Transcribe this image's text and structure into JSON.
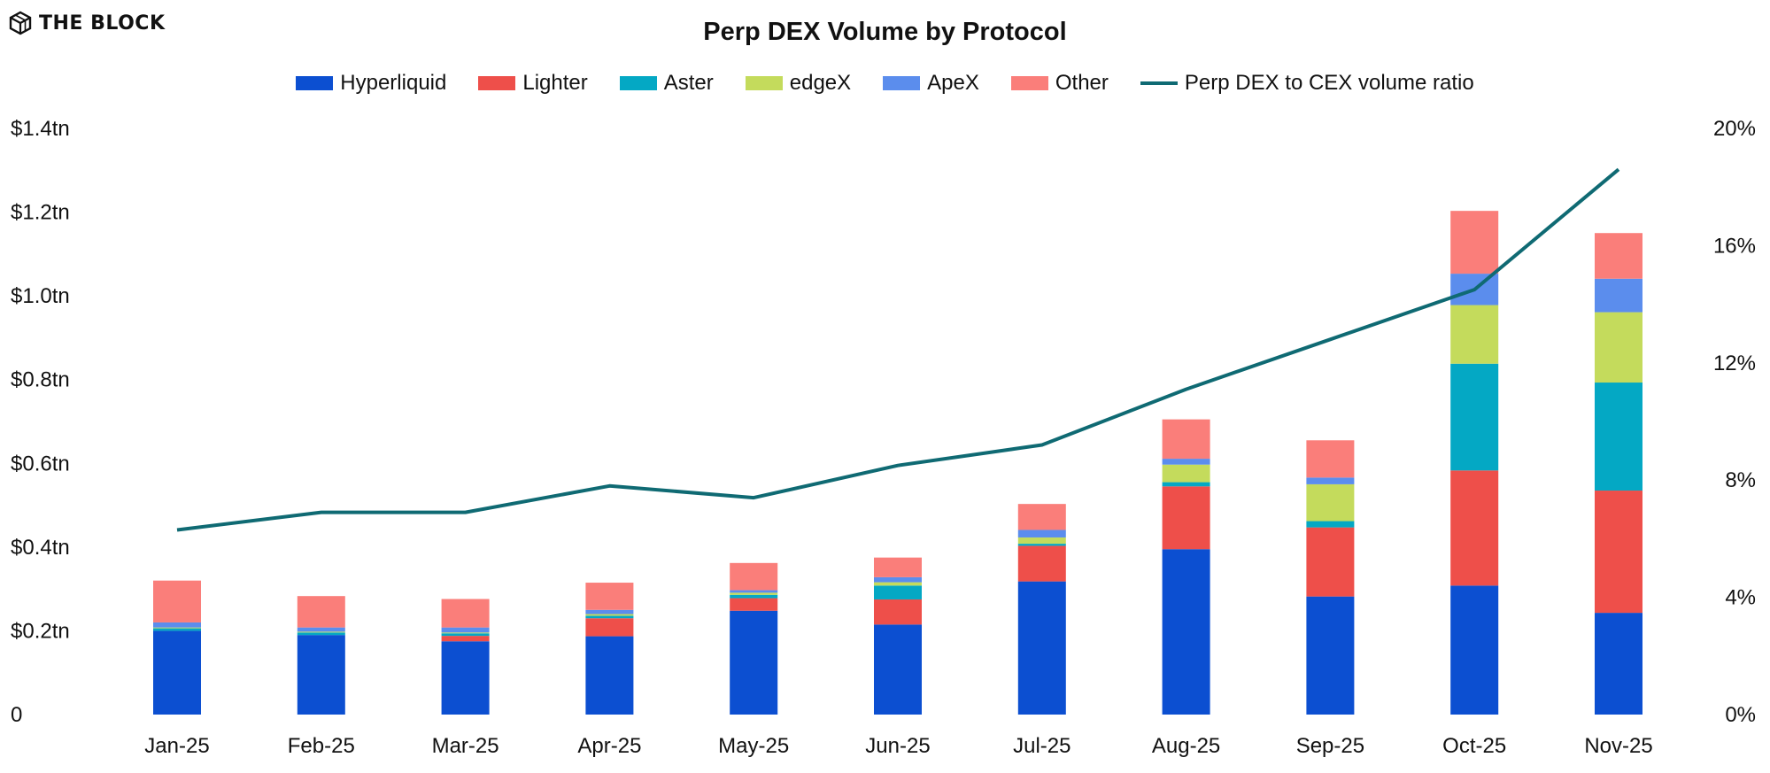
{
  "brand": {
    "name": "THE BLOCK",
    "logo_icon": "cube-logo-icon"
  },
  "colors": {
    "Hyperliquid": "#0c4fd1",
    "Lighter": "#ee4f4a",
    "Aster": "#04a8c4",
    "edgeX": "#c4db5c",
    "ApeX": "#5b8ded",
    "Other": "#fa7e7a",
    "ratio": "#0f6a73"
  },
  "chart_data": {
    "type": "bar",
    "stacked": true,
    "title": "Perp DEX Volume by Protocol",
    "categories": [
      "Jan-25",
      "Feb-25",
      "Mar-25",
      "Apr-25",
      "May-25",
      "Jun-25",
      "Jul-25",
      "Aug-25",
      "Sep-25",
      "Oct-25",
      "Nov-25"
    ],
    "series": [
      {
        "name": "Hyperliquid",
        "values": [
          0.2,
          0.19,
          0.175,
          0.187,
          0.248,
          0.215,
          0.318,
          0.395,
          0.282,
          0.308,
          0.243
        ]
      },
      {
        "name": "Lighter",
        "values": [
          0.0,
          0.0,
          0.013,
          0.043,
          0.03,
          0.06,
          0.085,
          0.15,
          0.165,
          0.275,
          0.292
        ]
      },
      {
        "name": "Aster",
        "values": [
          0.006,
          0.006,
          0.006,
          0.006,
          0.008,
          0.033,
          0.005,
          0.01,
          0.015,
          0.255,
          0.258
        ]
      },
      {
        "name": "edgeX",
        "values": [
          0.002,
          0.002,
          0.002,
          0.004,
          0.005,
          0.008,
          0.015,
          0.042,
          0.088,
          0.14,
          0.168
        ]
      },
      {
        "name": "ApeX",
        "values": [
          0.012,
          0.01,
          0.012,
          0.01,
          0.006,
          0.012,
          0.018,
          0.014,
          0.016,
          0.075,
          0.08
        ]
      },
      {
        "name": "Other",
        "values": [
          0.1,
          0.075,
          0.068,
          0.065,
          0.065,
          0.047,
          0.062,
          0.094,
          0.089,
          0.15,
          0.109
        ]
      }
    ],
    "line_series": {
      "name": "Perp DEX to CEX volume ratio",
      "axis": "right",
      "values": [
        6.3,
        6.9,
        6.9,
        7.8,
        7.4,
        8.5,
        9.2,
        11.1,
        12.8,
        14.5,
        18.6
      ]
    },
    "y_left": {
      "lim": [
        0,
        1.4
      ],
      "ticks": [
        0,
        0.2,
        0.4,
        0.6,
        0.8,
        1.0,
        1.2,
        1.4
      ],
      "tick_labels": [
        "0",
        "$0.2tn",
        "$0.4tn",
        "$0.6tn",
        "$0.8tn",
        "$1.0tn",
        "$1.2tn",
        "$1.4tn"
      ]
    },
    "y_right": {
      "lim": [
        0,
        20
      ],
      "ticks": [
        0,
        4,
        8,
        12,
        16,
        20
      ],
      "tick_labels": [
        "0%",
        "4%",
        "8%",
        "12%",
        "16%",
        "20%"
      ]
    },
    "xlabel": "",
    "ylabel": "",
    "grid": false,
    "legend_position": "top-center"
  }
}
